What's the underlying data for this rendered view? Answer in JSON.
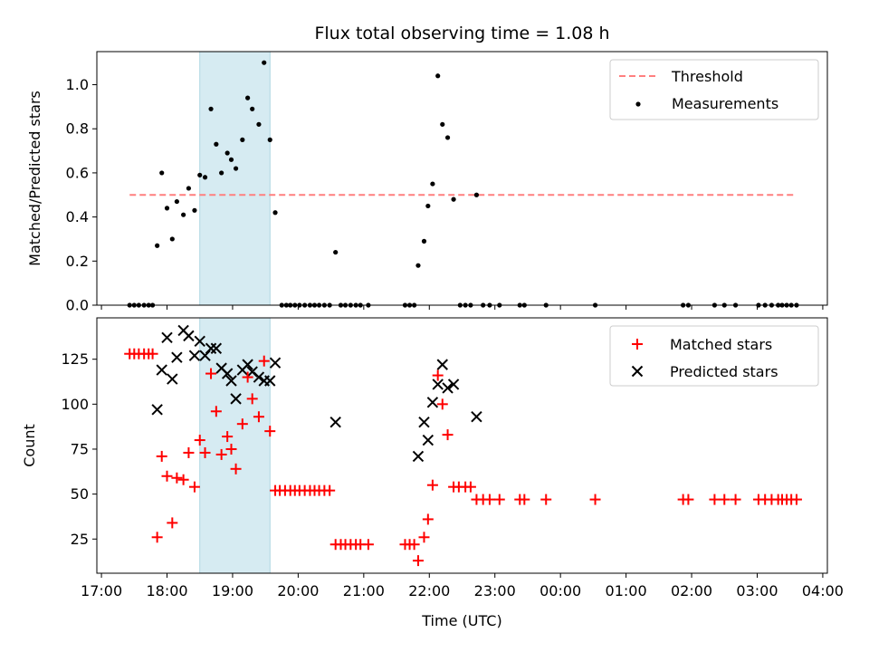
{
  "chart_data": [
    {
      "type": "scatter",
      "title": "Flux total observing time = 1.08 h",
      "xlabel": "",
      "ylabel": "Matched/Predicted stars",
      "xlim_hours": [
        16.93,
        28.07
      ],
      "ylim": [
        0,
        1.15
      ],
      "yticks": [
        0.0,
        0.2,
        0.4,
        0.6,
        0.8,
        1.0
      ],
      "ytick_labels": [
        "0.0",
        "0.2",
        "0.4",
        "0.6",
        "0.8",
        "1.0"
      ],
      "highlight_span_hours": [
        18.5,
        19.57
      ],
      "threshold": {
        "name": "Threshold",
        "value": 0.5,
        "x_range_hours": [
          17.43,
          27.6
        ],
        "color": "#ff7f7f"
      },
      "legend": [
        "Threshold",
        "Measurements"
      ],
      "legend_position": "top-right",
      "series": [
        {
          "name": "Measurements",
          "color": "#000000",
          "points": [
            [
              17.43,
              0
            ],
            [
              17.5,
              0
            ],
            [
              17.57,
              0
            ],
            [
              17.65,
              0
            ],
            [
              17.72,
              0
            ],
            [
              17.78,
              0
            ],
            [
              17.85,
              0.27
            ],
            [
              17.92,
              0.6
            ],
            [
              18.0,
              0.44
            ],
            [
              18.08,
              0.3
            ],
            [
              18.15,
              0.47
            ],
            [
              18.25,
              0.41
            ],
            [
              18.33,
              0.53
            ],
            [
              18.42,
              0.43
            ],
            [
              18.5,
              0.59
            ],
            [
              18.58,
              0.58
            ],
            [
              18.67,
              0.89
            ],
            [
              18.75,
              0.73
            ],
            [
              18.83,
              0.6
            ],
            [
              18.92,
              0.69
            ],
            [
              18.98,
              0.66
            ],
            [
              19.05,
              0.62
            ],
            [
              19.15,
              0.75
            ],
            [
              19.23,
              0.94
            ],
            [
              19.3,
              0.89
            ],
            [
              19.4,
              0.82
            ],
            [
              19.48,
              1.1
            ],
            [
              19.57,
              0.75
            ],
            [
              19.65,
              0.42
            ],
            [
              19.75,
              0
            ],
            [
              19.82,
              0
            ],
            [
              19.88,
              0
            ],
            [
              19.95,
              0
            ],
            [
              20.02,
              0
            ],
            [
              20.1,
              0
            ],
            [
              20.18,
              0
            ],
            [
              20.25,
              0
            ],
            [
              20.32,
              0
            ],
            [
              20.4,
              0
            ],
            [
              20.48,
              0
            ],
            [
              20.57,
              0.24
            ],
            [
              20.65,
              0
            ],
            [
              20.72,
              0
            ],
            [
              20.8,
              0
            ],
            [
              20.88,
              0
            ],
            [
              20.95,
              0
            ],
            [
              21.07,
              0
            ],
            [
              21.63,
              0
            ],
            [
              21.7,
              0
            ],
            [
              21.77,
              0
            ],
            [
              21.83,
              0.18
            ],
            [
              21.92,
              0.29
            ],
            [
              21.98,
              0.45
            ],
            [
              22.05,
              0.55
            ],
            [
              22.13,
              1.04
            ],
            [
              22.2,
              0.82
            ],
            [
              22.28,
              0.76
            ],
            [
              22.37,
              0.48
            ],
            [
              22.47,
              0
            ],
            [
              22.55,
              0
            ],
            [
              22.63,
              0
            ],
            [
              22.72,
              0.5
            ],
            [
              22.82,
              0
            ],
            [
              22.92,
              0
            ],
            [
              23.07,
              0
            ],
            [
              23.38,
              0
            ],
            [
              23.45,
              0
            ],
            [
              23.78,
              0
            ],
            [
              24.53,
              0
            ],
            [
              25.87,
              0
            ],
            [
              25.95,
              0
            ],
            [
              26.35,
              0
            ],
            [
              26.5,
              0
            ],
            [
              26.67,
              0
            ],
            [
              27.02,
              0
            ],
            [
              27.12,
              0
            ],
            [
              27.22,
              0
            ],
            [
              27.32,
              0
            ],
            [
              27.38,
              0
            ],
            [
              27.45,
              0
            ],
            [
              27.52,
              0
            ],
            [
              27.6,
              0
            ]
          ]
        }
      ]
    },
    {
      "type": "scatter",
      "title": "",
      "xlabel": "Time (UTC)",
      "ylabel": "Count",
      "xlim_hours": [
        16.93,
        28.07
      ],
      "ylim": [
        6,
        148
      ],
      "yticks": [
        25,
        50,
        75,
        100,
        125
      ],
      "ytick_labels": [
        "25",
        "50",
        "75",
        "100",
        "125"
      ],
      "xticks_hours": [
        17,
        18,
        19,
        20,
        21,
        22,
        23,
        24,
        25,
        26,
        27,
        28
      ],
      "xtick_labels": [
        "17:00",
        "18:00",
        "19:00",
        "20:00",
        "21:00",
        "22:00",
        "23:00",
        "00:00",
        "01:00",
        "02:00",
        "03:00",
        "04:00"
      ],
      "highlight_span_hours": [
        18.5,
        19.57
      ],
      "legend": [
        "Matched stars",
        "Predicted stars"
      ],
      "legend_position": "top-right",
      "series": [
        {
          "name": "Matched stars",
          "marker": "plus",
          "color": "#ff0000",
          "points": [
            [
              17.43,
              128
            ],
            [
              17.5,
              128
            ],
            [
              17.57,
              128
            ],
            [
              17.65,
              128
            ],
            [
              17.72,
              128
            ],
            [
              17.78,
              128
            ],
            [
              17.85,
              26
            ],
            [
              17.92,
              71
            ],
            [
              18.0,
              60
            ],
            [
              18.08,
              34
            ],
            [
              18.15,
              59
            ],
            [
              18.25,
              58
            ],
            [
              18.33,
              73
            ],
            [
              18.42,
              54
            ],
            [
              18.5,
              80
            ],
            [
              18.58,
              73
            ],
            [
              18.67,
              117
            ],
            [
              18.75,
              96
            ],
            [
              18.83,
              72
            ],
            [
              18.92,
              82
            ],
            [
              18.98,
              75
            ],
            [
              19.05,
              64
            ],
            [
              19.15,
              89
            ],
            [
              19.23,
              115
            ],
            [
              19.3,
              103
            ],
            [
              19.4,
              93
            ],
            [
              19.48,
              124
            ],
            [
              19.57,
              85
            ],
            [
              19.65,
              52
            ],
            [
              19.72,
              52
            ],
            [
              19.8,
              52
            ],
            [
              19.88,
              52
            ],
            [
              19.95,
              52
            ],
            [
              20.02,
              52
            ],
            [
              20.1,
              52
            ],
            [
              20.18,
              52
            ],
            [
              20.25,
              52
            ],
            [
              20.32,
              52
            ],
            [
              20.4,
              52
            ],
            [
              20.48,
              52
            ],
            [
              20.57,
              22
            ],
            [
              20.65,
              22
            ],
            [
              20.72,
              22
            ],
            [
              20.8,
              22
            ],
            [
              20.88,
              22
            ],
            [
              20.95,
              22
            ],
            [
              21.07,
              22
            ],
            [
              21.63,
              22
            ],
            [
              21.7,
              22
            ],
            [
              21.77,
              22
            ],
            [
              21.83,
              13
            ],
            [
              21.92,
              26
            ],
            [
              21.98,
              36
            ],
            [
              22.05,
              55
            ],
            [
              22.13,
              116
            ],
            [
              22.2,
              100
            ],
            [
              22.28,
              83
            ],
            [
              22.37,
              54
            ],
            [
              22.45,
              54
            ],
            [
              22.55,
              54
            ],
            [
              22.63,
              54
            ],
            [
              22.72,
              47
            ],
            [
              22.82,
              47
            ],
            [
              22.92,
              47
            ],
            [
              23.07,
              47
            ],
            [
              23.38,
              47
            ],
            [
              23.45,
              47
            ],
            [
              23.78,
              47
            ],
            [
              24.53,
              47
            ],
            [
              25.87,
              47
            ],
            [
              25.95,
              47
            ],
            [
              26.35,
              47
            ],
            [
              26.5,
              47
            ],
            [
              26.67,
              47
            ],
            [
              27.02,
              47
            ],
            [
              27.12,
              47
            ],
            [
              27.22,
              47
            ],
            [
              27.32,
              47
            ],
            [
              27.38,
              47
            ],
            [
              27.45,
              47
            ],
            [
              27.52,
              47
            ],
            [
              27.6,
              47
            ]
          ]
        },
        {
          "name": "Predicted stars",
          "marker": "x",
          "color": "#000000",
          "points": [
            [
              17.85,
              97
            ],
            [
              17.92,
              119
            ],
            [
              18.0,
              137
            ],
            [
              18.08,
              114
            ],
            [
              18.15,
              126
            ],
            [
              18.25,
              141
            ],
            [
              18.33,
              138
            ],
            [
              18.42,
              127
            ],
            [
              18.5,
              135
            ],
            [
              18.58,
              127
            ],
            [
              18.67,
              131
            ],
            [
              18.75,
              131
            ],
            [
              18.83,
              120
            ],
            [
              18.92,
              117
            ],
            [
              18.98,
              113
            ],
            [
              19.05,
              103
            ],
            [
              19.15,
              119
            ],
            [
              19.23,
              122
            ],
            [
              19.3,
              118
            ],
            [
              19.4,
              115
            ],
            [
              19.48,
              113
            ],
            [
              19.57,
              113
            ],
            [
              19.65,
              123
            ],
            [
              20.57,
              90
            ],
            [
              21.83,
              71
            ],
            [
              21.92,
              90
            ],
            [
              21.98,
              80
            ],
            [
              22.05,
              101
            ],
            [
              22.13,
              111
            ],
            [
              22.2,
              122
            ],
            [
              22.28,
              109
            ],
            [
              22.37,
              111
            ],
            [
              22.72,
              93
            ]
          ]
        }
      ]
    }
  ]
}
